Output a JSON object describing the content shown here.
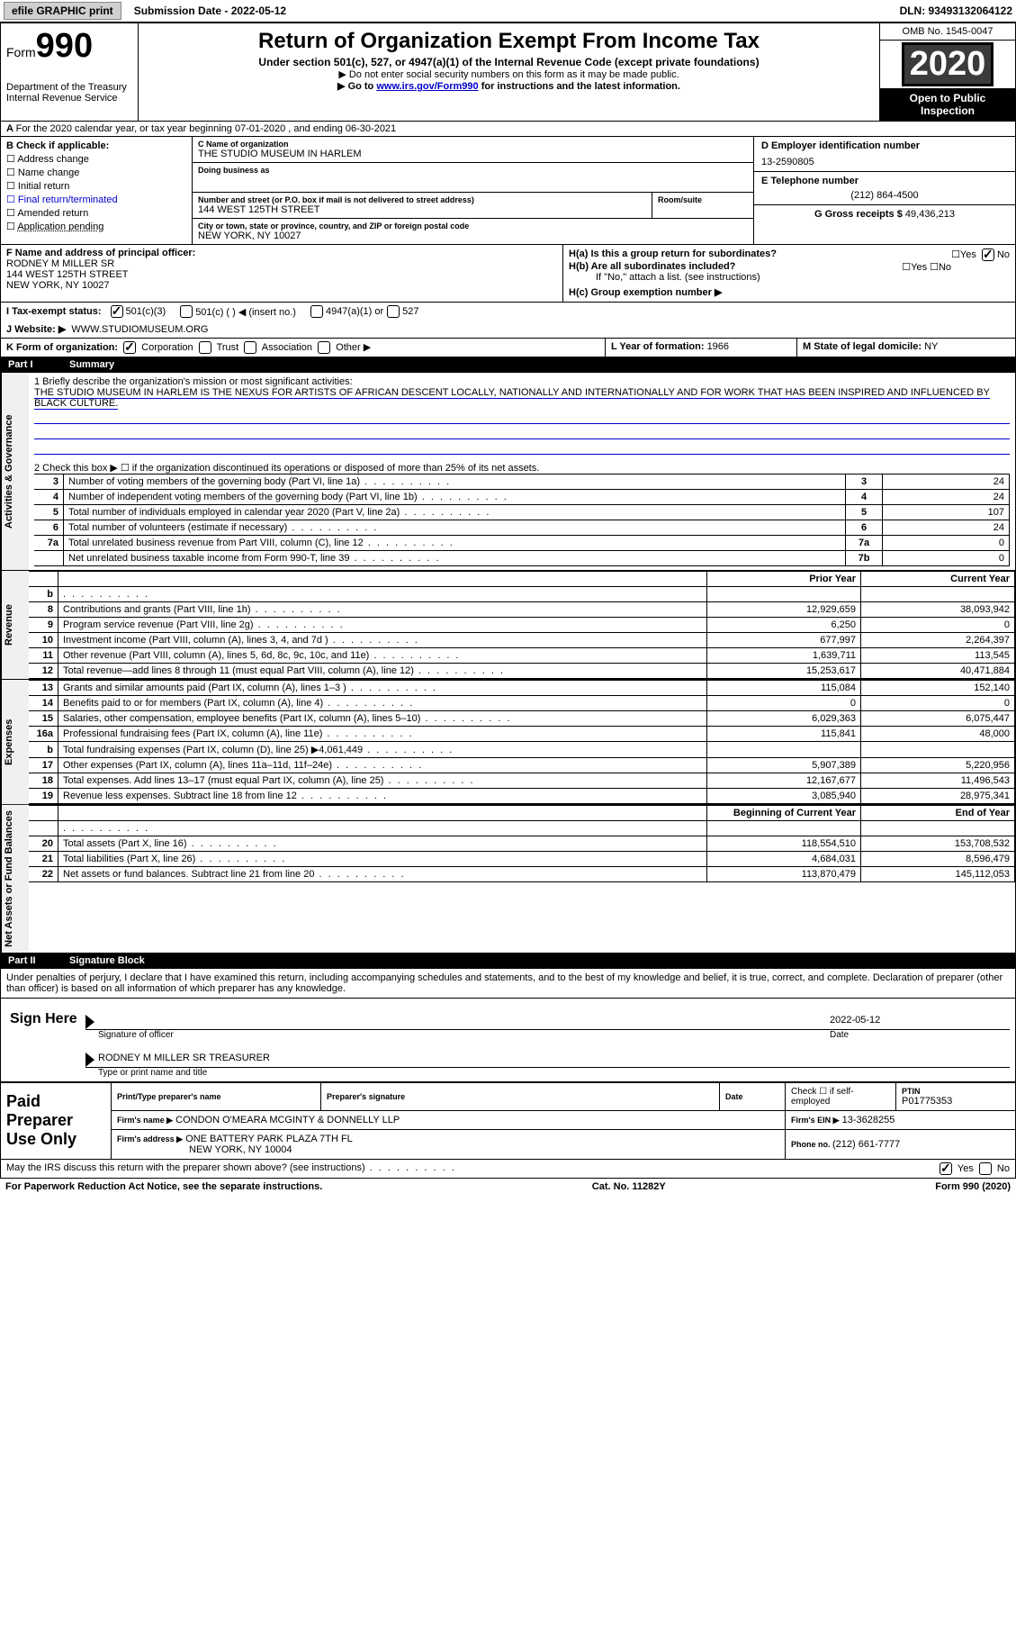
{
  "top": {
    "efile": "efile GRAPHIC print",
    "sub_date_label": "Submission Date - ",
    "sub_date_value": "2022-05-12",
    "dln": "DLN: 93493132064122"
  },
  "header": {
    "form_word": "Form",
    "form_num": "990",
    "dept": "Department of the Treasury\nInternal Revenue Service",
    "title": "Return of Organization Exempt From Income Tax",
    "subtitle": "Under section 501(c), 527, or 4947(a)(1) of the Internal Revenue Code (except private foundations)",
    "note1": "▶ Do not enter social security numbers on this form as it may be made public.",
    "note2_pre": "▶ Go to ",
    "note2_link": "www.irs.gov/Form990",
    "note2_post": " for instructions and the latest information.",
    "omb": "OMB No. 1545-0047",
    "year": "2020",
    "open": "Open to Public Inspection"
  },
  "line_a": "For the 2020 calendar year, or tax year beginning 07-01-2020    , and ending 06-30-2021",
  "check_b": {
    "label": "B Check if applicable:",
    "items": [
      "Address change",
      "Name change",
      "Initial return",
      "Final return/terminated",
      "Amended return",
      "Application pending"
    ]
  },
  "c": {
    "label": "C Name of organization",
    "value": "THE STUDIO MUSEUM IN HARLEM",
    "dba_label": "Doing business as",
    "dba_value": "",
    "addr_label": "Number and street (or P.O. box if mail is not delivered to street address)",
    "addr_value": "144 WEST 125TH STREET",
    "room_label": "Room/suite",
    "city_label": "City or town, state or province, country, and ZIP or foreign postal code",
    "city_value": "NEW YORK, NY  10027"
  },
  "d": {
    "label": "D Employer identification number",
    "value": "13-2590805"
  },
  "e": {
    "label": "E Telephone number",
    "value": "(212) 864-4500"
  },
  "g": {
    "label": "G Gross receipts $ ",
    "value": "49,436,213"
  },
  "f": {
    "label": "F  Name and address of principal officer:",
    "name": "RODNEY M MILLER SR",
    "addr1": "144 WEST 125TH STREET",
    "addr2": "NEW YORK, NY  10027"
  },
  "h": {
    "a_label": "H(a)  Is this a group return for subordinates?",
    "b_label": "H(b)  Are all subordinates included?",
    "b_note": "If \"No,\" attach a list. (see instructions)",
    "c_label": "H(c)  Group exemption number ▶"
  },
  "i": {
    "label": "I     Tax-exempt status:",
    "opts": [
      "501(c)(3)",
      "501(c) (   ) ◀ (insert no.)",
      "4947(a)(1) or",
      "527"
    ]
  },
  "j": {
    "label": "J    Website: ▶",
    "value": "WWW.STUDIOMUSEUM.ORG"
  },
  "k": {
    "label": "K Form of organization:",
    "opts": [
      "Corporation",
      "Trust",
      "Association",
      "Other ▶"
    ]
  },
  "l": {
    "label": "L Year of formation: ",
    "value": "1966"
  },
  "m": {
    "label": "M State of legal domicile: ",
    "value": "NY"
  },
  "part1": {
    "header": "Part I",
    "title": "Summary",
    "vert_ag": "Activities & Governance",
    "vert_rev": "Revenue",
    "vert_exp": "Expenses",
    "vert_na": "Net Assets or Fund Balances",
    "q1_label": "1  Briefly describe the organization's mission or most significant activities:",
    "q1_value": "THE STUDIO MUSEUM IN HARLEM IS THE NEXUS FOR ARTISTS OF AFRICAN DESCENT LOCALLY, NATIONALLY AND INTERNATIONALLY AND FOR WORK THAT HAS BEEN INSPIRED AND INFLUENCED BY BLACK CULTURE.",
    "q2": "2   Check this box ▶ ☐  if the organization discontinued its operations or disposed of more than 25% of its net assets.",
    "rows_ag": [
      {
        "n": "3",
        "desc": "Number of voting members of the governing body (Part VI, line 1a)",
        "box": "3",
        "val": "24"
      },
      {
        "n": "4",
        "desc": "Number of independent voting members of the governing body (Part VI, line 1b)",
        "box": "4",
        "val": "24"
      },
      {
        "n": "5",
        "desc": "Total number of individuals employed in calendar year 2020 (Part V, line 2a)",
        "box": "5",
        "val": "107"
      },
      {
        "n": "6",
        "desc": "Total number of volunteers (estimate if necessary)",
        "box": "6",
        "val": "24"
      },
      {
        "n": "7a",
        "desc": "Total unrelated business revenue from Part VIII, column (C), line 12",
        "box": "7a",
        "val": "0"
      },
      {
        "n": "",
        "desc": "Net unrelated business taxable income from Form 990-T, line 39",
        "box": "7b",
        "val": "0"
      }
    ],
    "prior_year": "Prior Year",
    "current_year": "Current Year",
    "rows_rev": [
      {
        "n": "b",
        "desc": "",
        "py": "",
        "cy": "",
        "shade": true
      },
      {
        "n": "8",
        "desc": "Contributions and grants (Part VIII, line 1h)",
        "py": "12,929,659",
        "cy": "38,093,942"
      },
      {
        "n": "9",
        "desc": "Program service revenue (Part VIII, line 2g)",
        "py": "6,250",
        "cy": "0"
      },
      {
        "n": "10",
        "desc": "Investment income (Part VIII, column (A), lines 3, 4, and 7d )",
        "py": "677,997",
        "cy": "2,264,397"
      },
      {
        "n": "11",
        "desc": "Other revenue (Part VIII, column (A), lines 5, 6d, 8c, 9c, 10c, and 11e)",
        "py": "1,639,711",
        "cy": "113,545"
      },
      {
        "n": "12",
        "desc": "Total revenue—add lines 8 through 11 (must equal Part VIII, column (A), line 12)",
        "py": "15,253,617",
        "cy": "40,471,884"
      }
    ],
    "rows_exp": [
      {
        "n": "13",
        "desc": "Grants and similar amounts paid (Part IX, column (A), lines 1–3 )",
        "py": "115,084",
        "cy": "152,140"
      },
      {
        "n": "14",
        "desc": "Benefits paid to or for members (Part IX, column (A), line 4)",
        "py": "0",
        "cy": "0"
      },
      {
        "n": "15",
        "desc": "Salaries, other compensation, employee benefits (Part IX, column (A), lines 5–10)",
        "py": "6,029,363",
        "cy": "6,075,447"
      },
      {
        "n": "16a",
        "desc": "Professional fundraising fees (Part IX, column (A), line 11e)",
        "py": "115,841",
        "cy": "48,000"
      },
      {
        "n": "b",
        "desc": "Total fundraising expenses (Part IX, column (D), line 25) ▶4,061,449",
        "py": "",
        "cy": "",
        "shade": true
      },
      {
        "n": "17",
        "desc": "Other expenses (Part IX, column (A), lines 11a–11d, 11f–24e)",
        "py": "5,907,389",
        "cy": "5,220,956"
      },
      {
        "n": "18",
        "desc": "Total expenses. Add lines 13–17 (must equal Part IX, column (A), line 25)",
        "py": "12,167,677",
        "cy": "11,496,543"
      },
      {
        "n": "19",
        "desc": "Revenue less expenses. Subtract line 18 from line 12",
        "py": "3,085,940",
        "cy": "28,975,341"
      }
    ],
    "boy": "Beginning of Current Year",
    "eoy": "End of Year",
    "rows_na": [
      {
        "n": "",
        "desc": "",
        "py": "",
        "cy": "",
        "shade": true
      },
      {
        "n": "20",
        "desc": "Total assets (Part X, line 16)",
        "py": "118,554,510",
        "cy": "153,708,532"
      },
      {
        "n": "21",
        "desc": "Total liabilities (Part X, line 26)",
        "py": "4,684,031",
        "cy": "8,596,479"
      },
      {
        "n": "22",
        "desc": "Net assets or fund balances. Subtract line 21 from line 20",
        "py": "113,870,479",
        "cy": "145,112,053"
      }
    ]
  },
  "part2": {
    "header": "Part II",
    "title": "Signature Block",
    "decl": "Under penalties of perjury, I declare that I have examined this return, including accompanying schedules and statements, and to the best of my knowledge and belief, it is true, correct, and complete. Declaration of preparer (other than officer) is based on all information of which preparer has any knowledge.",
    "sign_here": "Sign Here",
    "sig_officer": "Signature of officer",
    "sig_date": "2022-05-12",
    "date_label": "Date",
    "officer_name": "RODNEY M MILLER SR TREASURER",
    "officer_type": "Type or print name and title",
    "paid": "Paid Preparer Use Only",
    "prep_name_label": "Print/Type preparer's name",
    "prep_sig_label": "Preparer's signature",
    "prep_date_label": "Date",
    "prep_check": "Check ☐ if self-employed",
    "prep_ptin_label": "PTIN",
    "prep_ptin": "P01775353",
    "firm_name_label": "Firm's name   ▶",
    "firm_name": "CONDON O'MEARA MCGINTY & DONNELLY LLP",
    "firm_ein_label": "Firm's EIN ▶",
    "firm_ein": "13-3628255",
    "firm_addr_label": "Firm's address ▶",
    "firm_addr1": "ONE BATTERY PARK PLAZA 7TH FL",
    "firm_addr2": "NEW YORK, NY  10004",
    "firm_phone_label": "Phone no. ",
    "firm_phone": "(212) 661-7777",
    "discuss": "May the IRS discuss this return with the preparer shown above? (see instructions)"
  },
  "footer": {
    "left": "For Paperwork Reduction Act Notice, see the separate instructions.",
    "mid": "Cat. No. 11282Y",
    "right": "Form 990 (2020)"
  }
}
